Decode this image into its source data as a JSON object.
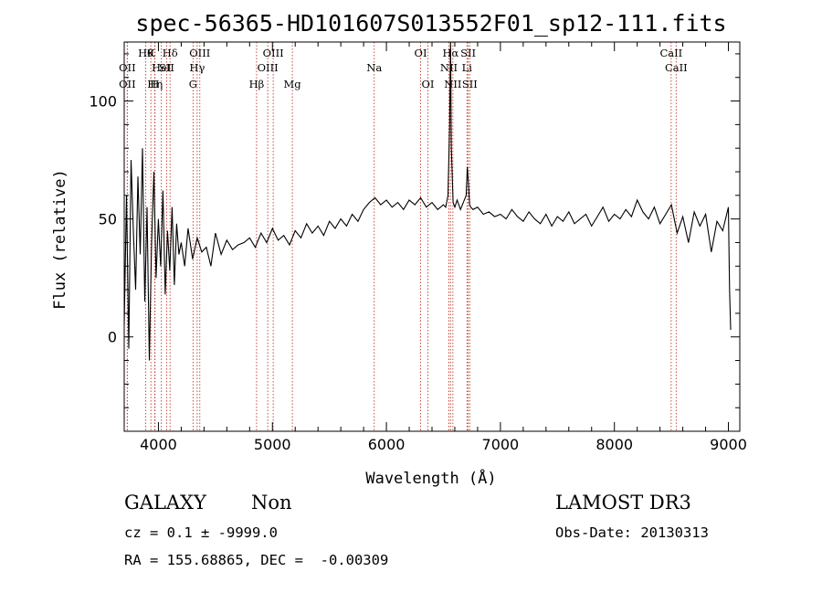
{
  "chart_data": {
    "type": "line",
    "title": "spec-56365-HD101607S013552F01_sp12-111.fits",
    "xlabel": "Wavelength (Å)",
    "ylabel": "Flux (relative)",
    "xlim": [
      3700,
      9100
    ],
    "ylim": [
      -40,
      125
    ],
    "x_ticks": [
      4000,
      5000,
      6000,
      7000,
      8000,
      9000
    ],
    "y_ticks": [
      0,
      50,
      100
    ],
    "grid": false,
    "line_color": "#000000",
    "marker_line_color": "#c0392b",
    "spectral_lines": [
      {
        "lambda": 3727,
        "label": "OII",
        "row": 2
      },
      {
        "lambda": 3727,
        "label": "OII",
        "row": 3
      },
      {
        "lambda": 3889,
        "label": "Hθ",
        "row": 1
      },
      {
        "lambda": 3934,
        "label": "K",
        "row": 1
      },
      {
        "lambda": 3968,
        "label": "H",
        "row": 3
      },
      {
        "lambda": 4026,
        "label": "HeI",
        "row": 2
      },
      {
        "lambda": 4072,
        "label": "SII",
        "row": 2
      },
      {
        "lambda": 4102,
        "label": "Hδ",
        "row": 1
      },
      {
        "lambda": 3970,
        "label": "Hη",
        "row": 3
      },
      {
        "lambda": 4340,
        "label": "Hγ",
        "row": 2
      },
      {
        "lambda": 4304,
        "label": "G",
        "row": 3
      },
      {
        "lambda": 4363,
        "label": "OIII",
        "row": 1
      },
      {
        "lambda": 4861,
        "label": "Hβ",
        "row": 3
      },
      {
        "lambda": 4959,
        "label": "OIII",
        "row": 2
      },
      {
        "lambda": 5007,
        "label": "OIII",
        "row": 1
      },
      {
        "lambda": 5175,
        "label": "Mg",
        "row": 3
      },
      {
        "lambda": 5893,
        "label": "Na",
        "row": 2
      },
      {
        "lambda": 6300,
        "label": "OI",
        "row": 1
      },
      {
        "lambda": 6364,
        "label": "OI",
        "row": 3
      },
      {
        "lambda": 6548,
        "label": "NII",
        "row": 2
      },
      {
        "lambda": 6563,
        "label": "Hα",
        "row": 1
      },
      {
        "lambda": 6583,
        "label": "NII",
        "row": 3
      },
      {
        "lambda": 6707,
        "label": "Li",
        "row": 2
      },
      {
        "lambda": 6717,
        "label": "SII",
        "row": 1
      },
      {
        "lambda": 6731,
        "label": "SII",
        "row": 3
      },
      {
        "lambda": 8498,
        "label": "CaII",
        "row": 1
      },
      {
        "lambda": 8542,
        "label": "CaII",
        "row": 2
      }
    ],
    "series": [
      {
        "x": [
          3700,
          3720,
          3740,
          3760,
          3780,
          3800,
          3820,
          3840,
          3860,
          3880,
          3900,
          3920,
          3940,
          3960,
          3980,
          4000,
          4020,
          4040,
          4060,
          4080,
          4100,
          4120,
          4140,
          4160,
          4180,
          4200,
          4230,
          4260,
          4300,
          4340,
          4380,
          4420,
          4460,
          4500,
          4550,
          4600,
          4650,
          4700,
          4750,
          4800,
          4850,
          4900,
          4950,
          5000,
          5050,
          5100,
          5150,
          5200,
          5250,
          5300,
          5350,
          5400,
          5450,
          5500,
          5550,
          5600,
          5650,
          5700,
          5750,
          5800,
          5850,
          5900,
          5950,
          6000,
          6050,
          6100,
          6150,
          6200,
          6250,
          6300,
          6350,
          6400,
          6450,
          6500,
          6520,
          6540,
          6555,
          6563,
          6570,
          6585,
          6600,
          6620,
          6650,
          6700,
          6710,
          6720,
          6730,
          6740,
          6760,
          6800,
          6850,
          6900,
          6950,
          7000,
          7050,
          7100,
          7150,
          7200,
          7250,
          7300,
          7350,
          7400,
          7450,
          7500,
          7550,
          7600,
          7650,
          7700,
          7750,
          7800,
          7850,
          7900,
          7950,
          8000,
          8050,
          8100,
          8150,
          8200,
          8250,
          8300,
          8350,
          8400,
          8450,
          8500,
          8550,
          8600,
          8650,
          8700,
          8750,
          8800,
          8850,
          8900,
          8950,
          9000,
          9010,
          9020
        ],
        "y": [
          5,
          60,
          -5,
          75,
          45,
          20,
          68,
          35,
          80,
          15,
          55,
          -10,
          40,
          70,
          25,
          50,
          30,
          62,
          18,
          45,
          28,
          55,
          22,
          48,
          35,
          40,
          30,
          46,
          33,
          42,
          36,
          38,
          30,
          44,
          35,
          41,
          37,
          39,
          40,
          42,
          38,
          44,
          40,
          46,
          41,
          43,
          39,
          45,
          42,
          48,
          44,
          47,
          43,
          49,
          46,
          50,
          47,
          52,
          49,
          54,
          57,
          59,
          56,
          58,
          55,
          57,
          54,
          58,
          56,
          59,
          55,
          57,
          54,
          56,
          55,
          60,
          90,
          125,
          80,
          57,
          55,
          58,
          54,
          60,
          72,
          65,
          56,
          55,
          54,
          55,
          52,
          53,
          51,
          52,
          50,
          54,
          51,
          49,
          53,
          50,
          48,
          52,
          47,
          51,
          49,
          53,
          48,
          50,
          52,
          47,
          51,
          55,
          49,
          52,
          50,
          54,
          51,
          58,
          53,
          50,
          55,
          48,
          52,
          56,
          44,
          51,
          40,
          53,
          47,
          52,
          36,
          49,
          45,
          55,
          20,
          3
        ]
      }
    ]
  },
  "info": {
    "class": "GALAXY",
    "subclass": "Non",
    "survey": "LAMOST DR3",
    "cz": "cz = 0.1 ± -9999.0",
    "obs_date": "Obs-Date: 20130313",
    "radec": "RA = 155.68865, DEC =  -0.00309"
  }
}
